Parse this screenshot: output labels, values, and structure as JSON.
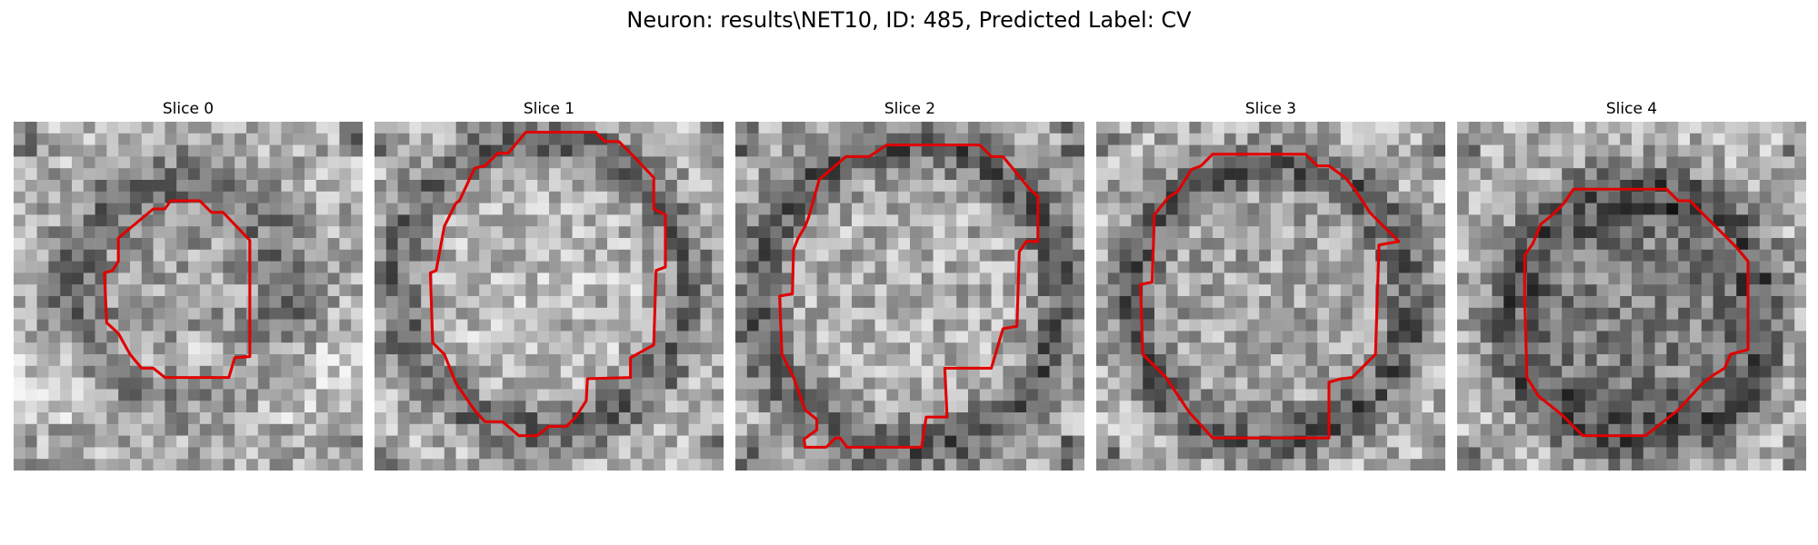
{
  "figure": {
    "title": "Neuron: results\\NET10, ID: 485, Predicted Label: CV",
    "panels": [
      {
        "title": "Slice 0"
      },
      {
        "title": "Slice 1"
      },
      {
        "title": "Slice 2"
      },
      {
        "title": "Slice 3"
      },
      {
        "title": "Slice 4"
      }
    ],
    "contour_color": "#e00000"
  }
}
